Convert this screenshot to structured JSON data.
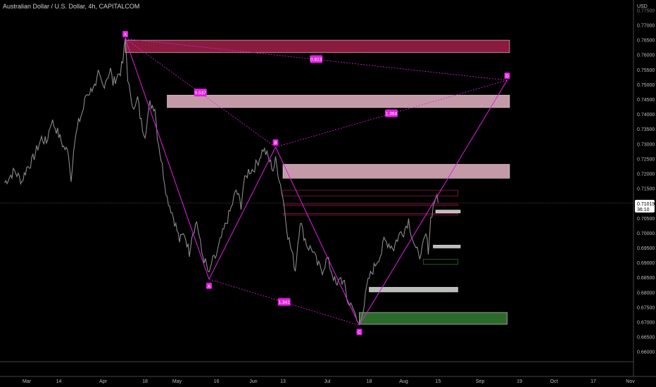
{
  "header": {
    "symbol_title": "Australian Dollar / U.S. Dollar, 4h, CAPITALCOM",
    "currency": "USD"
  },
  "price_label": {
    "value": "0.71019",
    "countdown": "36:10",
    "price": 0.71019
  },
  "colors": {
    "background": "#000000",
    "candles": "#8a8a8a",
    "pattern": "#e020e0",
    "zone_red": "#8a1b3e",
    "zone_pink": "#c49aa8",
    "zone_green": "#2c6a2c",
    "zone_gray": "#b8bdb8"
  },
  "chart_data": {
    "type": "line",
    "title": "Australian Dollar / U.S. Dollar, 4h, CAPITALCOM",
    "ylim": [
      0.655,
      0.775
    ],
    "y_ticks": [
      "0.77000",
      "0.76500",
      "0.76000",
      "0.75500",
      "0.75000",
      "0.74500",
      "0.74000",
      "0.73500",
      "0.73000",
      "0.72500",
      "0.72000",
      "0.71500",
      "0.71000",
      "0.70500",
      "0.70000",
      "0.69500",
      "0.69000",
      "0.68500",
      "0.68000",
      "0.67500",
      "0.67000",
      "0.66500",
      "0.66000"
    ],
    "y_top_partial": "0.77500",
    "x_ticks": [
      "Mar",
      "14",
      "Apr",
      "18",
      "May",
      "16",
      "Jun",
      "13",
      "Jul",
      "18",
      "Aug",
      "15",
      "Sep",
      "19",
      "Oct",
      "17",
      "Nov"
    ],
    "x_tick_days": [
      0,
      13,
      31,
      48,
      61,
      77,
      92,
      104,
      122,
      139,
      153,
      167,
      184,
      200,
      214,
      230,
      245
    ],
    "price_series": {
      "name": "",
      "points": [
        [
          -9,
          0.717
        ],
        [
          -5,
          0.721
        ],
        [
          -2,
          0.7175
        ],
        [
          0,
          0.722
        ],
        [
          2,
          0.724
        ],
        [
          4,
          0.728
        ],
        [
          6,
          0.732
        ],
        [
          8,
          0.7305
        ],
        [
          10,
          0.738
        ],
        [
          12,
          0.735
        ],
        [
          13,
          0.733
        ],
        [
          15,
          0.729
        ],
        [
          16,
          0.728
        ],
        [
          17,
          0.727
        ],
        [
          18,
          0.7175
        ],
        [
          19,
          0.729
        ],
        [
          21,
          0.737
        ],
        [
          23,
          0.742
        ],
        [
          24,
          0.7465
        ],
        [
          26,
          0.748
        ],
        [
          27,
          0.75
        ],
        [
          28,
          0.7485
        ],
        [
          29,
          0.7535
        ],
        [
          31,
          0.7495
        ],
        [
          32,
          0.7515
        ],
        [
          34,
          0.755
        ],
        [
          35,
          0.7505
        ],
        [
          36,
          0.752
        ],
        [
          38,
          0.7545
        ],
        [
          39,
          0.7575
        ],
        [
          40,
          0.7655
        ],
        [
          41,
          0.7525
        ],
        [
          42,
          0.746
        ],
        [
          44,
          0.742
        ],
        [
          45,
          0.7455
        ],
        [
          46,
          0.7395
        ],
        [
          47,
          0.7355
        ],
        [
          48,
          0.7335
        ],
        [
          49,
          0.7385
        ],
        [
          50,
          0.7435
        ],
        [
          52,
          0.7425
        ],
        [
          53,
          0.733
        ],
        [
          55,
          0.7225
        ],
        [
          57,
          0.712
        ],
        [
          59,
          0.707
        ],
        [
          61,
          0.701
        ],
        [
          62,
          0.6975
        ],
        [
          64,
          0.7
        ],
        [
          66,
          0.6935
        ],
        [
          67,
          0.6995
        ],
        [
          69,
          0.704
        ],
        [
          70,
          0.699
        ],
        [
          71,
          0.6935
        ],
        [
          73,
          0.689
        ],
        [
          74,
          0.6855
        ],
        [
          75,
          0.69
        ],
        [
          77,
          0.6925
        ],
        [
          79,
          0.6985
        ],
        [
          81,
          0.7035
        ],
        [
          83,
          0.7085
        ],
        [
          85,
          0.7145
        ],
        [
          87,
          0.7095
        ],
        [
          88,
          0.7165
        ],
        [
          90,
          0.721
        ],
        [
          92,
          0.7215
        ],
        [
          94,
          0.7245
        ],
        [
          96,
          0.7285
        ],
        [
          98,
          0.7255
        ],
        [
          100,
          0.7215
        ],
        [
          101,
          0.7245
        ],
        [
          103,
          0.7165
        ],
        [
          104,
          0.712
        ],
        [
          106,
          0.6995
        ],
        [
          108,
          0.692
        ],
        [
          109,
          0.6875
        ],
        [
          110,
          0.6965
        ],
        [
          111,
          0.7045
        ],
        [
          112,
          0.7005
        ],
        [
          114,
          0.6955
        ],
        [
          116,
          0.6945
        ],
        [
          118,
          0.6895
        ],
        [
          120,
          0.6875
        ],
        [
          122,
          0.6915
        ],
        [
          124,
          0.6865
        ],
        [
          126,
          0.6815
        ],
        [
          127,
          0.6855
        ],
        [
          129,
          0.6825
        ],
        [
          130,
          0.678
        ],
        [
          131,
          0.6755
        ],
        [
          132,
          0.677
        ],
        [
          133,
          0.6725
        ],
        [
          134,
          0.6705
        ],
        [
          135,
          0.669
        ],
        [
          136,
          0.673
        ],
        [
          137,
          0.676
        ],
        [
          138,
          0.6815
        ],
        [
          139,
          0.685
        ],
        [
          141,
          0.6885
        ],
        [
          142,
          0.6905
        ],
        [
          144,
          0.6935
        ],
        [
          145,
          0.6975
        ],
        [
          147,
          0.6965
        ],
        [
          149,
          0.695
        ],
        [
          150,
          0.6975
        ],
        [
          152,
          0.7005
        ],
        [
          153,
          0.7005
        ],
        [
          155,
          0.7045
        ],
        [
          156,
          0.7005
        ],
        [
          158,
          0.6935
        ],
        [
          159,
          0.6945
        ],
        [
          160,
          0.6915
        ],
        [
          161,
          0.6965
        ],
        [
          162,
          0.6995
        ],
        [
          163,
          0.6945
        ],
        [
          164,
          0.705
        ],
        [
          165,
          0.709
        ],
        [
          166,
          0.7125
        ],
        [
          167,
          0.7102
        ]
      ]
    },
    "harmonic_pattern": {
      "points": [
        {
          "label": "X",
          "day": 40,
          "price": 0.7655
        },
        {
          "label": "A",
          "day": 74,
          "price": 0.6845
        },
        {
          "label": "B",
          "day": 101,
          "price": 0.729
        },
        {
          "label": "C",
          "day": 135,
          "price": 0.669
        },
        {
          "label": "D",
          "day": 195,
          "price": 0.7515
        }
      ],
      "ratios": [
        {
          "text": "0.813",
          "from": "X",
          "to": "D"
        },
        {
          "text": "0.537",
          "from": "X",
          "to": "B"
        },
        {
          "text": "1.364",
          "from": "B",
          "to": "D"
        },
        {
          "text": "1.341",
          "from": "A",
          "to": "C"
        }
      ]
    },
    "zones": [
      {
        "kind": "red",
        "day_start": 40,
        "day_end": 196,
        "price_low": 0.7608,
        "price_high": 0.765
      },
      {
        "kind": "pink",
        "day_start": 57,
        "day_end": 196,
        "price_low": 0.7423,
        "price_high": 0.7465
      },
      {
        "kind": "pink",
        "day_start": 104,
        "day_end": 196,
        "price_low": 0.7185,
        "price_high": 0.7232
      },
      {
        "kind": "green",
        "day_start": 135,
        "day_end": 195,
        "price_low": 0.6693,
        "price_high": 0.6733
      },
      {
        "kind": "gray",
        "day_start": 139,
        "day_end": 175,
        "price_low": 0.6802,
        "price_high": 0.6818
      },
      {
        "kind": "gray",
        "day_start": 166,
        "day_end": 176,
        "price_low": 0.7068,
        "price_high": 0.7078
      },
      {
        "kind": "gray",
        "day_start": 165,
        "day_end": 176,
        "price_low": 0.695,
        "price_high": 0.696
      }
    ],
    "outline_zones": [
      {
        "color": "#8a1b3e",
        "day_start": 104,
        "day_end": 175,
        "price_low": 0.7125,
        "price_high": 0.7145
      },
      {
        "color": "#8a1b3e",
        "day_start": 104,
        "day_end": 175,
        "price_low": 0.7093,
        "price_high": 0.7098
      },
      {
        "color": "#8a1b3e",
        "day_start": 104,
        "day_end": 175,
        "price_low": 0.7061,
        "price_high": 0.7066
      },
      {
        "color": "#2c6a2c",
        "day_start": 161,
        "day_end": 175,
        "price_low": 0.6895,
        "price_high": 0.6912
      }
    ]
  }
}
